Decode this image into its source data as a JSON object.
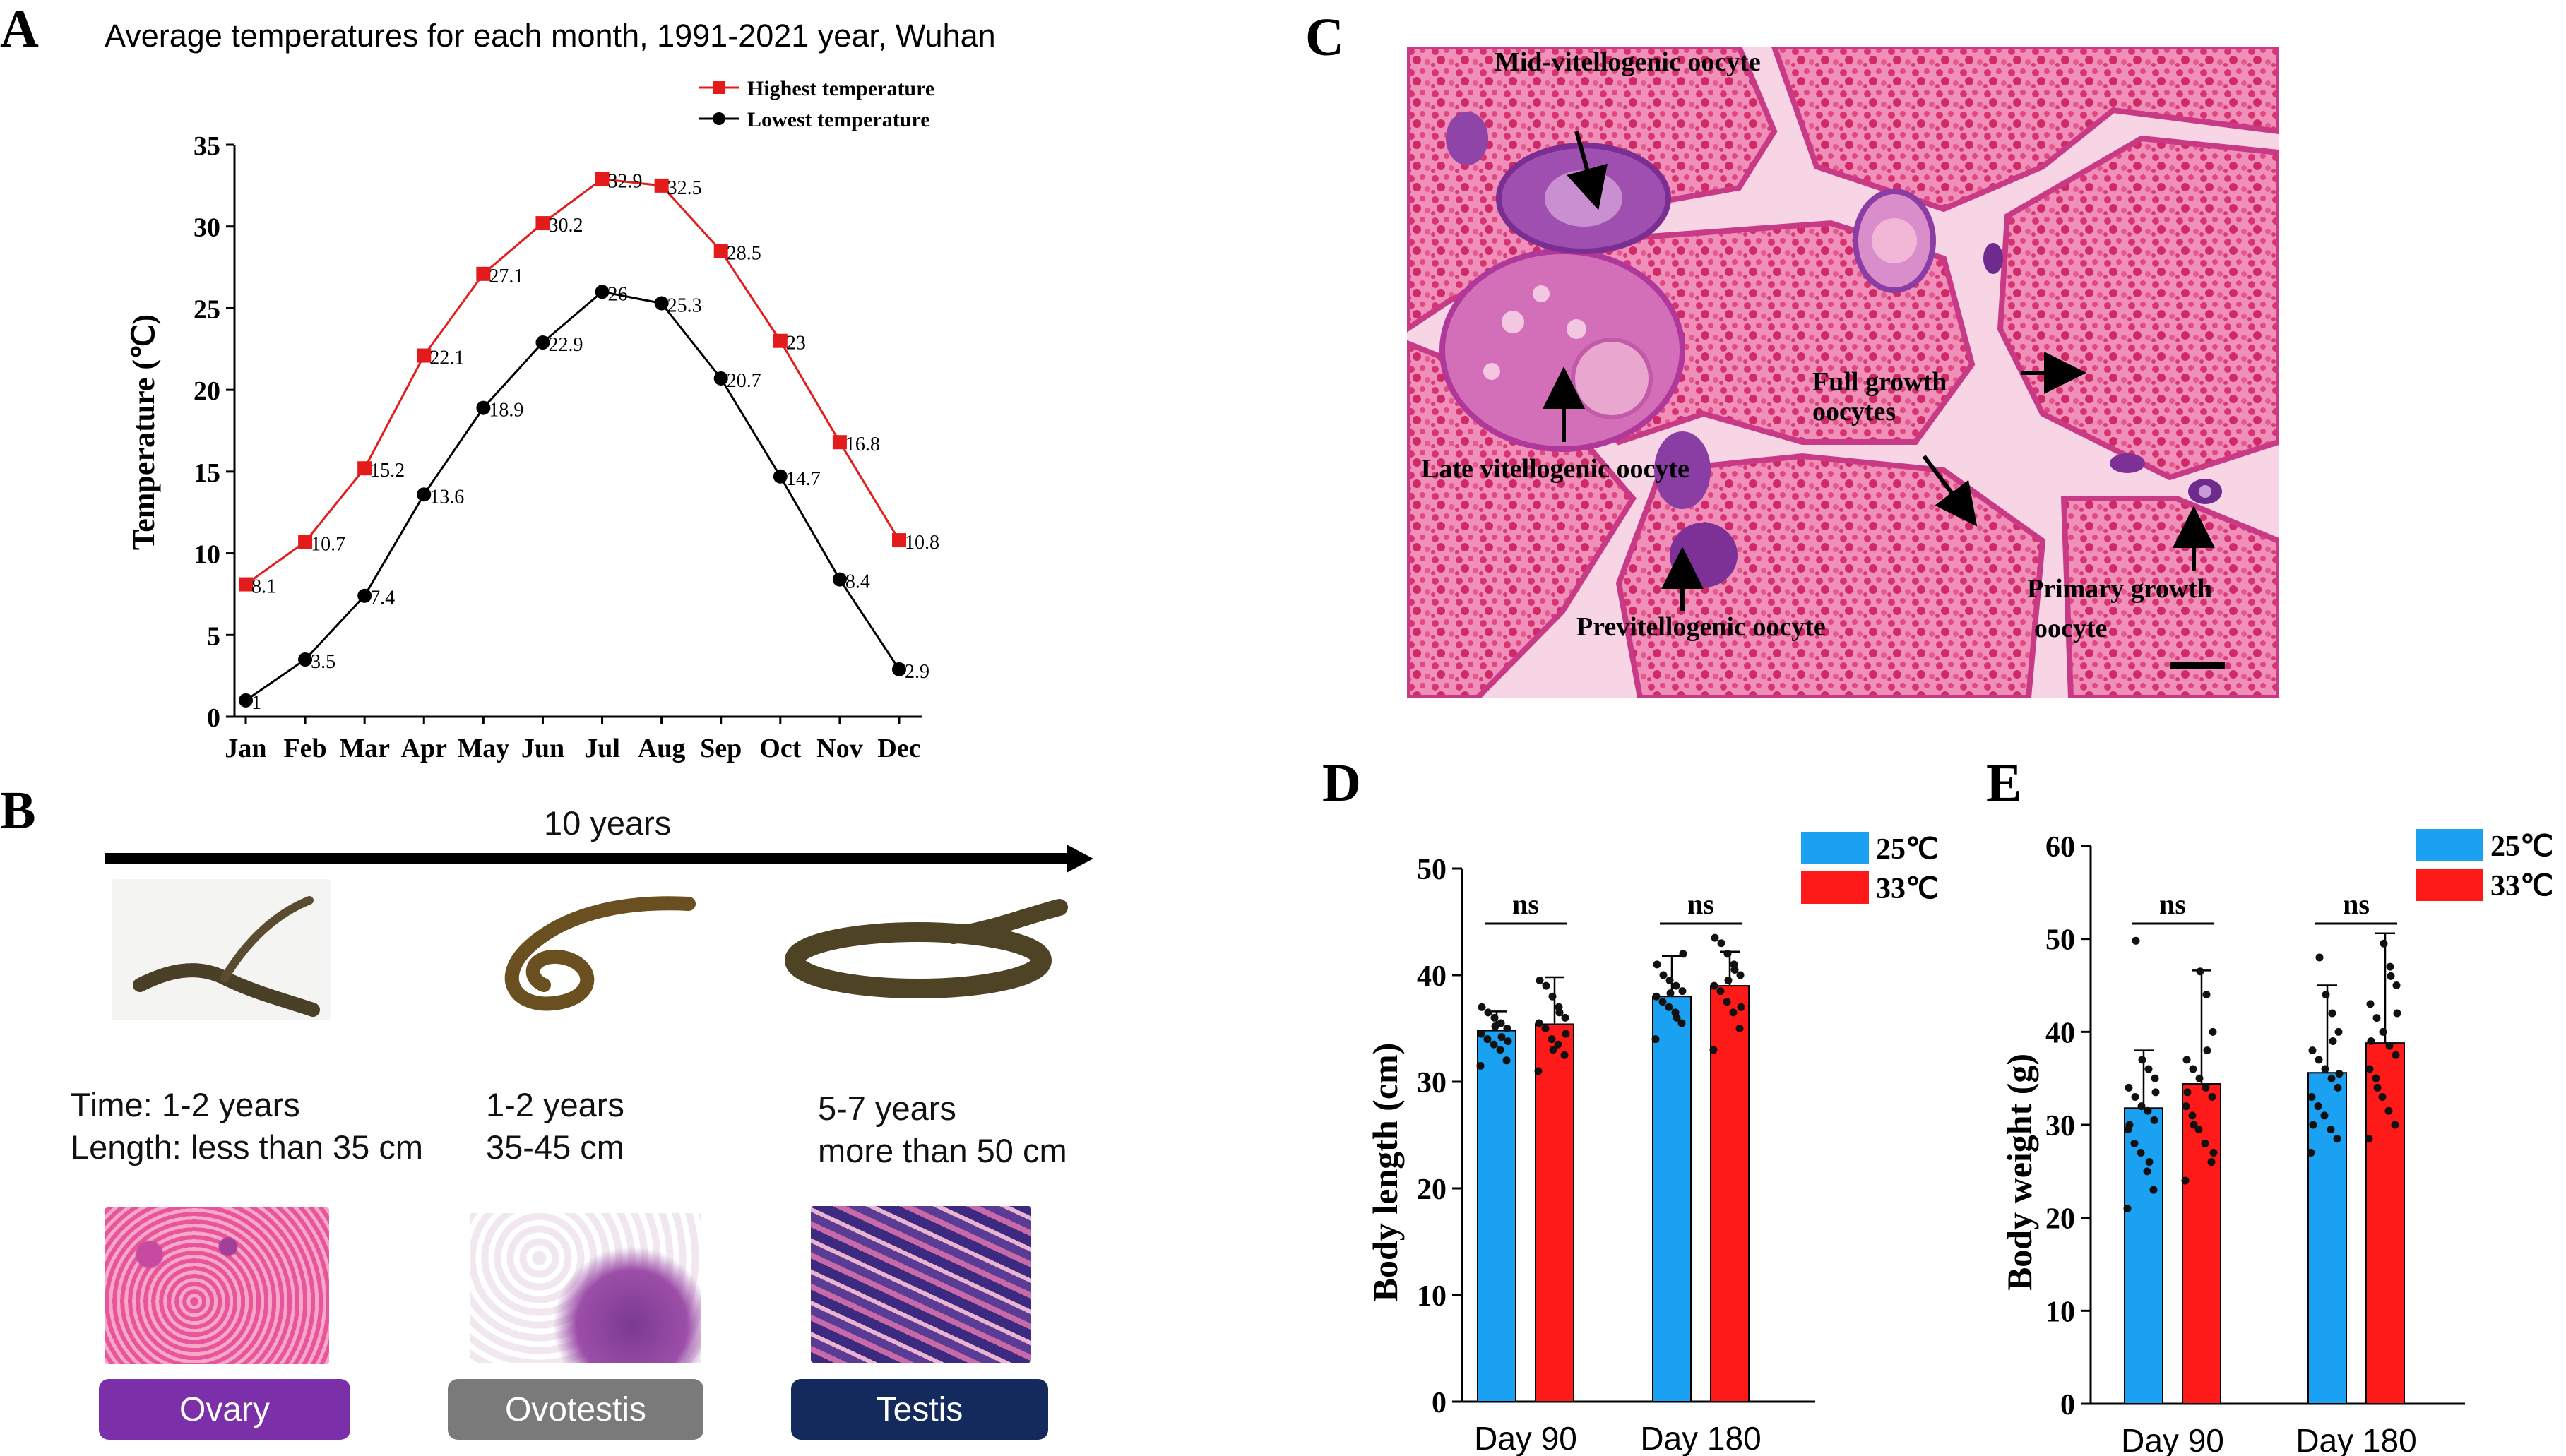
{
  "panels": {
    "a": "A",
    "b": "B",
    "c": "C",
    "d": "D",
    "e": "E"
  },
  "colors": {
    "high": "#e31b1b",
    "low": "#000000",
    "bar25": "#1ba1f2",
    "bar33": "#ff1a1a",
    "ovary": "#7b2fa8",
    "ovotestis": "#7a7a7a",
    "testis": "#142a5c"
  },
  "chart_data": [
    {
      "type": "line",
      "title": "Average temperatures for each month, 1991-2021 year, Wuhan",
      "xlabel": "",
      "ylabel": "Temperature (℃)",
      "categories": [
        "Jan",
        "Feb",
        "Mar",
        "Apr",
        "May",
        "Jun",
        "Jul",
        "Aug",
        "Sep",
        "Oct",
        "Nov",
        "Dec"
      ],
      "ylim": [
        0,
        35
      ],
      "yticks": [
        0,
        5,
        10,
        15,
        20,
        25,
        30,
        35
      ],
      "legend": "top-right",
      "series": [
        {
          "name": "Highest temperature",
          "marker": "square",
          "values": [
            8.1,
            10.7,
            15.2,
            22.1,
            27.1,
            30.2,
            32.9,
            32.5,
            28.5,
            23,
            16.8,
            10.8
          ]
        },
        {
          "name": "Lowest temperature",
          "marker": "circle",
          "values": [
            1,
            3.5,
            7.4,
            13.6,
            18.9,
            22.9,
            26,
            25.3,
            20.7,
            14.7,
            8.4,
            2.9
          ]
        }
      ]
    },
    {
      "type": "bar",
      "xlabel": "",
      "ylabel": "Body length (cm)",
      "categories": [
        "Day 90",
        "Day 180"
      ],
      "ylim": [
        0,
        50
      ],
      "yticks": [
        0,
        10,
        20,
        30,
        40,
        50
      ],
      "legend": "top-right",
      "significance": [
        "ns",
        "ns"
      ],
      "series": [
        {
          "name": "25℃",
          "values": [
            34.8,
            38.0
          ],
          "err": [
            1.8,
            3.8
          ],
          "points": [
            [
              31.5,
              32.0,
              33.0,
              33.5,
              34.0,
              34.5,
              35.0,
              35.5,
              36.0,
              36.5,
              37.0,
              33.8,
              34.2,
              35.2
            ],
            [
              34.0,
              35.5,
              36.5,
              37.0,
              37.5,
              38.0,
              38.5,
              39.0,
              39.5,
              40.0,
              41.0,
              42.0,
              36.0,
              38.3
            ]
          ]
        },
        {
          "name": "33℃",
          "values": [
            35.4,
            39.0
          ],
          "err": [
            4.4,
            3.2
          ],
          "points": [
            [
              31.0,
              32.5,
              33.5,
              34.0,
              35.0,
              35.5,
              36.0,
              37.0,
              38.0,
              39.0,
              39.5,
              34.5,
              36.5,
              33.0
            ],
            [
              33.0,
              35.0,
              36.5,
              37.5,
              38.5,
              39.0,
              40.0,
              41.0,
              42.0,
              43.0,
              43.5,
              37.0,
              40.5,
              39.5
            ]
          ]
        }
      ]
    },
    {
      "type": "bar",
      "xlabel": "",
      "ylabel": "Body weight (g)",
      "categories": [
        "Day 90",
        "Day 180"
      ],
      "ylim": [
        0,
        60
      ],
      "yticks": [
        0,
        10,
        20,
        30,
        40,
        50,
        60
      ],
      "legend": "top-right",
      "significance": [
        "ns",
        "ns"
      ],
      "series": [
        {
          "name": "25℃",
          "values": [
            31.8,
            35.6
          ],
          "err": [
            6.2,
            9.4
          ],
          "points": [
            [
              21.0,
              23.0,
              25.0,
              27.0,
              28.0,
              29.5,
              30.5,
              31.5,
              32.0,
              33.0,
              34.0,
              35.0,
              36.0,
              37.0,
              49.8,
              30.0,
              33.5,
              26.0
            ],
            [
              27.0,
              28.5,
              29.5,
              31.0,
              32.0,
              33.0,
              34.0,
              35.0,
              36.0,
              37.0,
              38.0,
              40.0,
              42.0,
              44.0,
              48.0,
              30.0,
              35.5,
              39.0
            ]
          ]
        },
        {
          "name": "33℃",
          "values": [
            34.4,
            38.8
          ],
          "err": [
            12.2,
            11.8
          ],
          "points": [
            [
              24.0,
              26.0,
              28.0,
              29.5,
              31.0,
              32.0,
              33.0,
              34.0,
              35.0,
              36.0,
              37.0,
              40.0,
              44.0,
              46.5,
              30.0,
              33.5,
              27.0,
              38.0
            ],
            [
              28.5,
              30.0,
              31.5,
              33.0,
              35.0,
              36.0,
              37.5,
              38.5,
              40.0,
              41.5,
              43.0,
              45.0,
              47.0,
              49.5,
              34.0,
              39.0,
              42.0,
              46.0
            ]
          ]
        }
      ]
    }
  ],
  "panel_b": {
    "timeline_label": "10 years",
    "stages": [
      {
        "time": "Time: 1-2 years",
        "length": "Length: less than 35 cm",
        "organ": "Ovary"
      },
      {
        "time": "1-2 years",
        "length": "35-45 cm",
        "organ": "Ovotestis"
      },
      {
        "time": "5-7 years",
        "length": "more than 50 cm",
        "organ": "Testis"
      }
    ]
  },
  "panel_c": {
    "labels": {
      "mid": "Mid-vitellogenic oocyte",
      "late": "Late vitellogenic oocyte",
      "full1": "Full growth",
      "full2": "oocytes",
      "prev": "Previtellogenic oocyte",
      "prim1": "Primary growth",
      "prim2": "oocyte"
    }
  }
}
